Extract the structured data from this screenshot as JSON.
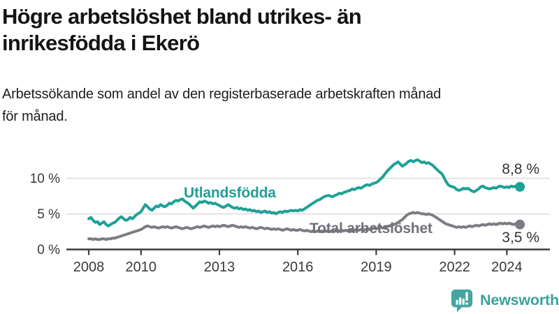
{
  "header": {
    "title_line1": "Högre arbetslöshet bland utrikes- än",
    "title_line2": "inrikesfödda i Ekerö",
    "subtitle_line1": "Arbetssökande som andel av den registerbaserade arbetskraften månad",
    "subtitle_line2": "för månad."
  },
  "chart_data": {
    "type": "line",
    "title": "Högre arbetslöshet bland utrikes- än inrikesfödda i Ekerö",
    "x_unit": "month",
    "x_start": "2008-01",
    "x_end": "2024-07",
    "x_tick_years": [
      2008,
      2010,
      2013,
      2016,
      2019,
      2022,
      2024
    ],
    "y_ticks": [
      {
        "value": 0,
        "label": "0 %"
      },
      {
        "value": 5,
        "label": "5 %"
      },
      {
        "value": 10,
        "label": "10 %"
      }
    ],
    "ylim": [
      0,
      13.5
    ],
    "grid": "horizontal",
    "legend_position": "inline-labels",
    "series": [
      {
        "name": "Utlandsfödda",
        "label": "Utlandsfödda",
        "color": "#1FA196",
        "end_label": "8,8 %",
        "end_value": 8.8,
        "values": [
          4.3,
          4.5,
          4.1,
          3.8,
          3.9,
          3.5,
          3.7,
          3.9,
          3.5,
          3.3,
          3.5,
          3.7,
          3.8,
          4.1,
          4.4,
          4.6,
          4.3,
          4.1,
          4.2,
          4.5,
          4.3,
          4.6,
          4.9,
          5.1,
          5.3,
          5.8,
          6.3,
          6.0,
          5.7,
          5.5,
          5.8,
          6.1,
          6.0,
          6.3,
          6.1,
          6.0,
          6.2,
          6.5,
          6.4,
          6.7,
          6.9,
          6.8,
          7.0,
          7.1,
          6.8,
          6.6,
          6.4,
          6.1,
          5.8,
          6.1,
          6.4,
          6.7,
          6.6,
          6.8,
          6.7,
          6.5,
          6.6,
          6.4,
          6.5,
          6.3,
          6.2,
          6.0,
          5.9,
          6.1,
          6.3,
          6.1,
          5.9,
          5.8,
          5.9,
          5.7,
          5.8,
          5.6,
          5.7,
          5.5,
          5.6,
          5.4,
          5.5,
          5.3,
          5.4,
          5.2,
          5.3,
          5.4,
          5.2,
          5.3,
          5.1,
          5.2,
          5.0,
          5.2,
          5.3,
          5.2,
          5.4,
          5.3,
          5.4,
          5.5,
          5.4,
          5.5,
          5.4,
          5.6,
          5.5,
          5.7,
          5.9,
          6.1,
          6.3,
          6.5,
          6.7,
          6.9,
          7.0,
          7.2,
          7.4,
          7.5,
          7.6,
          7.5,
          7.4,
          7.6,
          7.7,
          7.9,
          7.8,
          8.0,
          8.1,
          8.2,
          8.3,
          8.5,
          8.4,
          8.6,
          8.7,
          8.6,
          8.8,
          9.0,
          9.1,
          9.0,
          9.2,
          9.3,
          9.4,
          9.6,
          9.9,
          10.2,
          10.6,
          11.0,
          11.3,
          11.6,
          11.9,
          12.1,
          12.3,
          12.0,
          11.7,
          11.9,
          12.1,
          12.4,
          12.5,
          12.3,
          12.5,
          12.6,
          12.4,
          12.2,
          12.3,
          12.1,
          12.2,
          12.0,
          11.8,
          11.5,
          11.2,
          10.9,
          10.7,
          10.2,
          9.6,
          9.1,
          8.9,
          8.8,
          8.7,
          8.4,
          8.3,
          8.4,
          8.6,
          8.5,
          8.6,
          8.4,
          8.2,
          8.1,
          8.3,
          8.5,
          8.8,
          8.9,
          8.7,
          8.6,
          8.5,
          8.6,
          8.7,
          8.6,
          8.8,
          8.9,
          8.8,
          8.7,
          8.8,
          8.7,
          8.9,
          8.8,
          8.9,
          8.8,
          8.8
        ]
      },
      {
        "name": "Total arbetslöshet",
        "label": "Total arbetslöshet",
        "color": "#7C7C83",
        "label_color": "#70707A",
        "end_label": "3,5 %",
        "end_value": 3.5,
        "values": [
          1.5,
          1.5,
          1.4,
          1.5,
          1.4,
          1.4,
          1.5,
          1.5,
          1.4,
          1.5,
          1.5,
          1.6,
          1.6,
          1.7,
          1.8,
          1.9,
          2.0,
          2.1,
          2.2,
          2.3,
          2.4,
          2.5,
          2.6,
          2.7,
          2.8,
          3.0,
          3.2,
          3.3,
          3.2,
          3.1,
          3.2,
          3.1,
          3.0,
          3.1,
          3.2,
          3.1,
          3.2,
          3.1,
          3.0,
          3.1,
          3.2,
          3.1,
          3.0,
          2.9,
          3.0,
          3.1,
          3.0,
          2.9,
          3.0,
          3.1,
          3.2,
          3.1,
          3.2,
          3.3,
          3.2,
          3.1,
          3.2,
          3.3,
          3.2,
          3.3,
          3.2,
          3.3,
          3.4,
          3.3,
          3.2,
          3.3,
          3.4,
          3.3,
          3.2,
          3.1,
          3.2,
          3.1,
          3.2,
          3.1,
          3.0,
          3.1,
          3.0,
          2.9,
          3.0,
          3.1,
          3.0,
          2.9,
          3.0,
          2.9,
          2.8,
          2.9,
          2.8,
          2.9,
          2.8,
          2.7,
          2.8,
          2.9,
          2.8,
          2.7,
          2.8,
          2.7,
          2.7,
          2.8,
          2.7,
          2.6,
          2.7,
          2.6,
          2.5,
          2.6,
          2.5,
          2.6,
          2.5,
          2.6,
          2.5,
          2.6,
          2.5,
          2.6,
          2.5,
          2.6,
          2.7,
          2.6,
          2.7,
          2.6,
          2.7,
          2.6,
          2.7,
          2.6,
          2.7,
          2.8,
          2.7,
          2.8,
          2.7,
          2.8,
          2.9,
          2.8,
          2.9,
          3.0,
          2.9,
          3.0,
          3.1,
          3.0,
          3.1,
          3.2,
          3.3,
          3.4,
          3.5,
          3.6,
          3.8,
          4.0,
          4.2,
          4.5,
          4.8,
          5.0,
          5.1,
          5.2,
          5.1,
          5.2,
          5.1,
          5.0,
          5.0,
          4.9,
          5.0,
          4.9,
          4.8,
          4.6,
          4.4,
          4.2,
          4.0,
          3.8,
          3.6,
          3.5,
          3.4,
          3.3,
          3.2,
          3.1,
          3.2,
          3.1,
          3.2,
          3.1,
          3.2,
          3.3,
          3.2,
          3.3,
          3.4,
          3.3,
          3.4,
          3.5,
          3.4,
          3.5,
          3.6,
          3.5,
          3.6,
          3.5,
          3.6,
          3.7,
          3.6,
          3.7,
          3.6,
          3.7,
          3.6,
          3.5,
          3.6,
          3.5,
          3.5
        ]
      }
    ]
  },
  "branding": {
    "name": "Newsworthy",
    "logo_icon": "newsworthy-speech-bubble-bar-chart-icon"
  },
  "colors": {
    "accent_teal": "#1FA196",
    "series_gray": "#7C7C83",
    "series_gray_label": "#70707A",
    "value_label": "#333333",
    "axis": "#3C3C3C",
    "gridline": "#DCDCDC",
    "tick_label": "#3A3A3A",
    "brand_teal": "#3AA29B",
    "background": "#FFFFFF"
  }
}
